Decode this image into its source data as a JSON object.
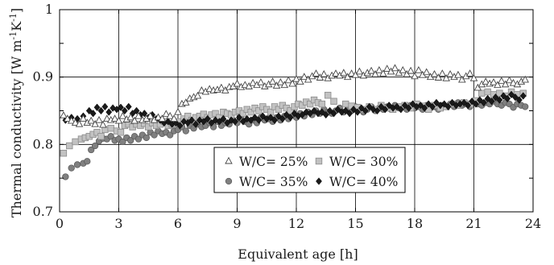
{
  "chart_data": {
    "type": "scatter",
    "title": "",
    "xlabel": "Equivalent age [h]",
    "ylabel": "Thermal conductivity [W m",
    "ylabel_unit_1": "-1",
    "ylabel_mid": "K",
    "ylabel_unit_2": "-1",
    "ylabel_end": "]",
    "xlim": [
      0,
      24
    ],
    "ylim": [
      0.7,
      1.0
    ],
    "xticks": [
      "0",
      "3",
      "6",
      "9",
      "12",
      "15",
      "18",
      "21",
      "24"
    ],
    "yticks": [
      "0.7",
      "0.8",
      "0.9",
      "1"
    ],
    "grid": true,
    "legend_position": "lower-center",
    "series": [
      {
        "name": "W/C= 25%",
        "marker": "triangle-open",
        "x": [
          0.2,
          0.4,
          0.6,
          0.8,
          1.0,
          1.2,
          1.4,
          1.6,
          1.8,
          2.0,
          2.2,
          2.4,
          2.6,
          2.8,
          3.0,
          3.2,
          3.4,
          3.6,
          3.8,
          4.0,
          4.2,
          4.4,
          4.6,
          4.8,
          5.0,
          5.2,
          5.4,
          5.6,
          5.8,
          6.0,
          6.2,
          6.4,
          6.6,
          6.8,
          7.0,
          7.2,
          7.4,
          7.6,
          7.8,
          8.0,
          8.2,
          8.4,
          8.6,
          8.8,
          9.0,
          9.2,
          9.4,
          9.6,
          9.8,
          10.0,
          10.2,
          10.4,
          10.6,
          10.8,
          11.0,
          11.2,
          11.4,
          11.6,
          11.8,
          12.0,
          12.2,
          12.4,
          12.6,
          12.8,
          13.0,
          13.2,
          13.4,
          13.6,
          13.8,
          14.0,
          14.2,
          14.4,
          14.6,
          14.8,
          15.0,
          15.2,
          15.4,
          15.6,
          15.8,
          16.0,
          16.2,
          16.4,
          16.6,
          16.8,
          17.0,
          17.2,
          17.4,
          17.6,
          17.8,
          18.0,
          18.2,
          18.4,
          18.6,
          18.8,
          19.0,
          19.2,
          19.4,
          19.6,
          19.8,
          20.0,
          20.2,
          20.4,
          20.6,
          20.8,
          21.0,
          21.2,
          21.4,
          21.6,
          21.8,
          22.0,
          22.2,
          22.4,
          22.6,
          22.8,
          23.0,
          23.2,
          23.4,
          23.6
        ],
        "y": [
          0.843,
          0.838,
          0.835,
          0.832,
          0.83,
          0.838,
          0.832,
          0.835,
          0.83,
          0.836,
          0.829,
          0.838,
          0.836,
          0.838,
          0.835,
          0.842,
          0.837,
          0.84,
          0.835,
          0.842,
          0.836,
          0.838,
          0.842,
          0.836,
          0.84,
          0.838,
          0.845,
          0.842,
          0.838,
          0.848,
          0.86,
          0.862,
          0.868,
          0.87,
          0.872,
          0.88,
          0.878,
          0.882,
          0.88,
          0.881,
          0.884,
          0.88,
          0.885,
          0.886,
          0.89,
          0.885,
          0.888,
          0.886,
          0.891,
          0.888,
          0.892,
          0.886,
          0.889,
          0.893,
          0.887,
          0.892,
          0.888,
          0.895,
          0.89,
          0.897,
          0.893,
          0.9,
          0.896,
          0.901,
          0.905,
          0.899,
          0.904,
          0.898,
          0.902,
          0.905,
          0.902,
          0.906,
          0.9,
          0.905,
          0.903,
          0.908,
          0.902,
          0.906,
          0.909,
          0.904,
          0.91,
          0.905,
          0.912,
          0.908,
          0.913,
          0.906,
          0.91,
          0.904,
          0.909,
          0.901,
          0.91,
          0.903,
          0.907,
          0.9,
          0.904,
          0.899,
          0.905,
          0.898,
          0.904,
          0.9,
          0.903,
          0.896,
          0.901,
          0.905,
          0.898,
          0.884,
          0.889,
          0.893,
          0.89,
          0.892,
          0.888,
          0.894,
          0.889,
          0.895,
          0.891,
          0.889,
          0.893,
          0.896
        ]
      },
      {
        "name": "W/C= 30%",
        "marker": "square",
        "x": [
          0.2,
          0.5,
          0.8,
          1.1,
          1.3,
          1.5,
          1.7,
          1.9,
          2.1,
          2.3,
          2.6,
          2.9,
          3.1,
          3.3,
          3.5,
          3.7,
          3.9,
          4.1,
          4.3,
          4.5,
          4.7,
          4.9,
          5.1,
          5.3,
          5.5,
          5.7,
          5.9,
          6.1,
          6.3,
          6.5,
          6.7,
          6.9,
          7.1,
          7.3,
          7.5,
          7.7,
          7.9,
          8.1,
          8.3,
          8.5,
          8.7,
          8.9,
          9.1,
          9.3,
          9.5,
          9.7,
          9.9,
          10.1,
          10.3,
          10.5,
          10.7,
          10.9,
          11.1,
          11.3,
          11.5,
          11.7,
          11.9,
          12.1,
          12.3,
          12.5,
          12.7,
          12.9,
          13.1,
          13.3,
          13.6,
          13.9,
          14.5,
          14.8,
          15.1,
          15.4,
          15.7,
          16.0,
          16.3,
          16.6,
          16.9,
          17.2,
          17.5,
          17.8,
          18.1,
          18.4,
          18.7,
          19.0,
          19.3,
          19.6,
          19.9,
          20.2,
          20.5,
          20.8,
          21.1,
          21.4,
          21.7,
          22.0,
          22.3,
          22.6,
          22.9,
          23.2,
          23.5
        ],
        "y": [
          0.787,
          0.798,
          0.804,
          0.808,
          0.81,
          0.812,
          0.815,
          0.818,
          0.812,
          0.822,
          0.824,
          0.82,
          0.818,
          0.828,
          0.83,
          0.826,
          0.83,
          0.828,
          0.831,
          0.826,
          0.832,
          0.828,
          0.83,
          0.834,
          0.828,
          0.83,
          0.832,
          0.834,
          0.838,
          0.842,
          0.836,
          0.84,
          0.842,
          0.845,
          0.84,
          0.844,
          0.846,
          0.84,
          0.848,
          0.846,
          0.844,
          0.848,
          0.85,
          0.846,
          0.852,
          0.848,
          0.854,
          0.85,
          0.856,
          0.852,
          0.848,
          0.856,
          0.852,
          0.858,
          0.854,
          0.85,
          0.856,
          0.86,
          0.858,
          0.863,
          0.86,
          0.866,
          0.862,
          0.86,
          0.873,
          0.864,
          0.86,
          0.857,
          0.855,
          0.852,
          0.856,
          0.852,
          0.858,
          0.854,
          0.852,
          0.856,
          0.858,
          0.854,
          0.86,
          0.857,
          0.852,
          0.858,
          0.854,
          0.856,
          0.86,
          0.858,
          0.862,
          0.86,
          0.865,
          0.876,
          0.878,
          0.874,
          0.876,
          0.872,
          0.878,
          0.874,
          0.876
        ]
      },
      {
        "name": "W/C= 35%",
        "marker": "circle",
        "x": [
          0.3,
          0.6,
          0.9,
          1.2,
          1.4,
          1.6,
          1.8,
          2.0,
          2.2,
          2.4,
          2.6,
          2.8,
          3.0,
          3.2,
          3.4,
          3.6,
          3.8,
          4.0,
          4.2,
          4.4,
          4.6,
          4.8,
          5.0,
          5.2,
          5.4,
          5.6,
          5.8,
          6.0,
          6.2,
          6.4,
          6.6,
          6.8,
          7.0,
          7.2,
          7.4,
          7.6,
          7.8,
          8.0,
          8.2,
          8.4,
          8.6,
          8.8,
          9.0,
          9.2,
          9.4,
          9.6,
          9.8,
          10.0,
          10.2,
          10.4,
          10.6,
          10.8,
          11.0,
          11.2,
          11.4,
          11.6,
          11.8,
          12.0,
          12.2,
          12.4,
          12.6,
          12.8,
          13.0,
          13.2,
          13.4,
          13.6,
          13.8,
          14.0,
          14.2,
          14.4,
          14.6,
          14.8,
          15.0,
          15.2,
          15.4,
          15.6,
          15.8,
          16.0,
          16.2,
          16.4,
          16.6,
          16.8,
          17.0,
          17.2,
          17.4,
          17.6,
          17.8,
          18.0,
          18.2,
          18.4,
          18.6,
          18.8,
          19.0,
          19.2,
          19.4,
          19.6,
          19.8,
          20.0,
          20.2,
          20.4,
          20.6,
          20.8,
          21.0,
          21.2,
          21.4,
          21.6,
          21.8,
          22.0,
          22.2,
          22.4,
          22.6,
          22.8,
          23.0,
          23.2,
          23.4,
          23.6
        ],
        "y": [
          0.752,
          0.765,
          0.77,
          0.772,
          0.775,
          0.792,
          0.798,
          0.805,
          0.809,
          0.808,
          0.812,
          0.806,
          0.808,
          0.804,
          0.81,
          0.806,
          0.812,
          0.808,
          0.814,
          0.81,
          0.818,
          0.814,
          0.82,
          0.816,
          0.818,
          0.814,
          0.82,
          0.822,
          0.826,
          0.82,
          0.828,
          0.824,
          0.83,
          0.826,
          0.828,
          0.832,
          0.826,
          0.834,
          0.828,
          0.832,
          0.83,
          0.836,
          0.832,
          0.838,
          0.834,
          0.83,
          0.836,
          0.832,
          0.84,
          0.836,
          0.838,
          0.834,
          0.84,
          0.836,
          0.842,
          0.838,
          0.844,
          0.84,
          0.846,
          0.842,
          0.848,
          0.844,
          0.85,
          0.846,
          0.852,
          0.848,
          0.846,
          0.85,
          0.854,
          0.848,
          0.852,
          0.85,
          0.856,
          0.852,
          0.848,
          0.852,
          0.856,
          0.85,
          0.854,
          0.852,
          0.856,
          0.852,
          0.858,
          0.854,
          0.856,
          0.852,
          0.858,
          0.854,
          0.856,
          0.852,
          0.858,
          0.854,
          0.856,
          0.852,
          0.858,
          0.856,
          0.86,
          0.856,
          0.862,
          0.858,
          0.86,
          0.856,
          0.862,
          0.86,
          0.858,
          0.862,
          0.86,
          0.864,
          0.86,
          0.858,
          0.862,
          0.86,
          0.855,
          0.86,
          0.858,
          0.856
        ]
      },
      {
        "name": "W/C= 40%",
        "marker": "diamond",
        "x": [
          0.3,
          0.6,
          0.9,
          1.2,
          1.5,
          1.7,
          1.9,
          2.1,
          2.3,
          2.5,
          2.7,
          2.9,
          3.1,
          3.3,
          3.5,
          3.7,
          3.9,
          4.1,
          4.3,
          4.5,
          4.7,
          4.9,
          5.1,
          5.3,
          5.5,
          5.7,
          5.9,
          6.1,
          6.3,
          6.5,
          6.7,
          6.9,
          7.1,
          7.3,
          7.5,
          7.7,
          7.9,
          8.1,
          8.3,
          8.5,
          8.7,
          8.9,
          9.1,
          9.3,
          9.5,
          9.7,
          9.9,
          10.1,
          10.3,
          10.5,
          10.7,
          10.9,
          11.1,
          11.3,
          11.5,
          11.7,
          11.9,
          12.1,
          12.3,
          12.5,
          12.7,
          12.9,
          13.1,
          13.3,
          13.5,
          13.7,
          13.9,
          14.1,
          14.3,
          14.5,
          14.7,
          14.9,
          15.1,
          15.3,
          15.5,
          15.7,
          15.9,
          16.1,
          16.3,
          16.5,
          16.7,
          16.9,
          17.1,
          17.3,
          17.5,
          17.7,
          17.9,
          18.1,
          18.3,
          18.5,
          18.7,
          18.9,
          19.1,
          19.3,
          19.5,
          19.7,
          19.9,
          20.1,
          20.3,
          20.5,
          20.7,
          20.9,
          21.1,
          21.3,
          21.5,
          21.7,
          21.9,
          22.1,
          22.3,
          22.5,
          22.7,
          22.9,
          23.1,
          23.3,
          23.5
        ],
        "y": [
          0.836,
          0.84,
          0.838,
          0.842,
          0.85,
          0.846,
          0.855,
          0.85,
          0.856,
          0.848,
          0.854,
          0.852,
          0.855,
          0.85,
          0.856,
          0.846,
          0.85,
          0.844,
          0.846,
          0.84,
          0.844,
          0.838,
          0.836,
          0.832,
          0.834,
          0.83,
          0.832,
          0.828,
          0.834,
          0.832,
          0.836,
          0.83,
          0.836,
          0.834,
          0.838,
          0.832,
          0.836,
          0.834,
          0.838,
          0.832,
          0.836,
          0.834,
          0.84,
          0.834,
          0.838,
          0.836,
          0.84,
          0.836,
          0.842,
          0.838,
          0.84,
          0.836,
          0.842,
          0.838,
          0.844,
          0.84,
          0.846,
          0.842,
          0.844,
          0.848,
          0.846,
          0.85,
          0.846,
          0.848,
          0.844,
          0.85,
          0.846,
          0.852,
          0.848,
          0.85,
          0.846,
          0.852,
          0.848,
          0.854,
          0.85,
          0.856,
          0.852,
          0.85,
          0.856,
          0.852,
          0.858,
          0.854,
          0.856,
          0.852,
          0.858,
          0.854,
          0.86,
          0.856,
          0.858,
          0.854,
          0.86,
          0.856,
          0.862,
          0.858,
          0.86,
          0.856,
          0.862,
          0.858,
          0.86,
          0.862,
          0.858,
          0.864,
          0.86,
          0.866,
          0.862,
          0.868,
          0.864,
          0.87,
          0.866,
          0.872,
          0.868,
          0.874,
          0.87,
          0.866,
          0.872
        ]
      }
    ]
  }
}
